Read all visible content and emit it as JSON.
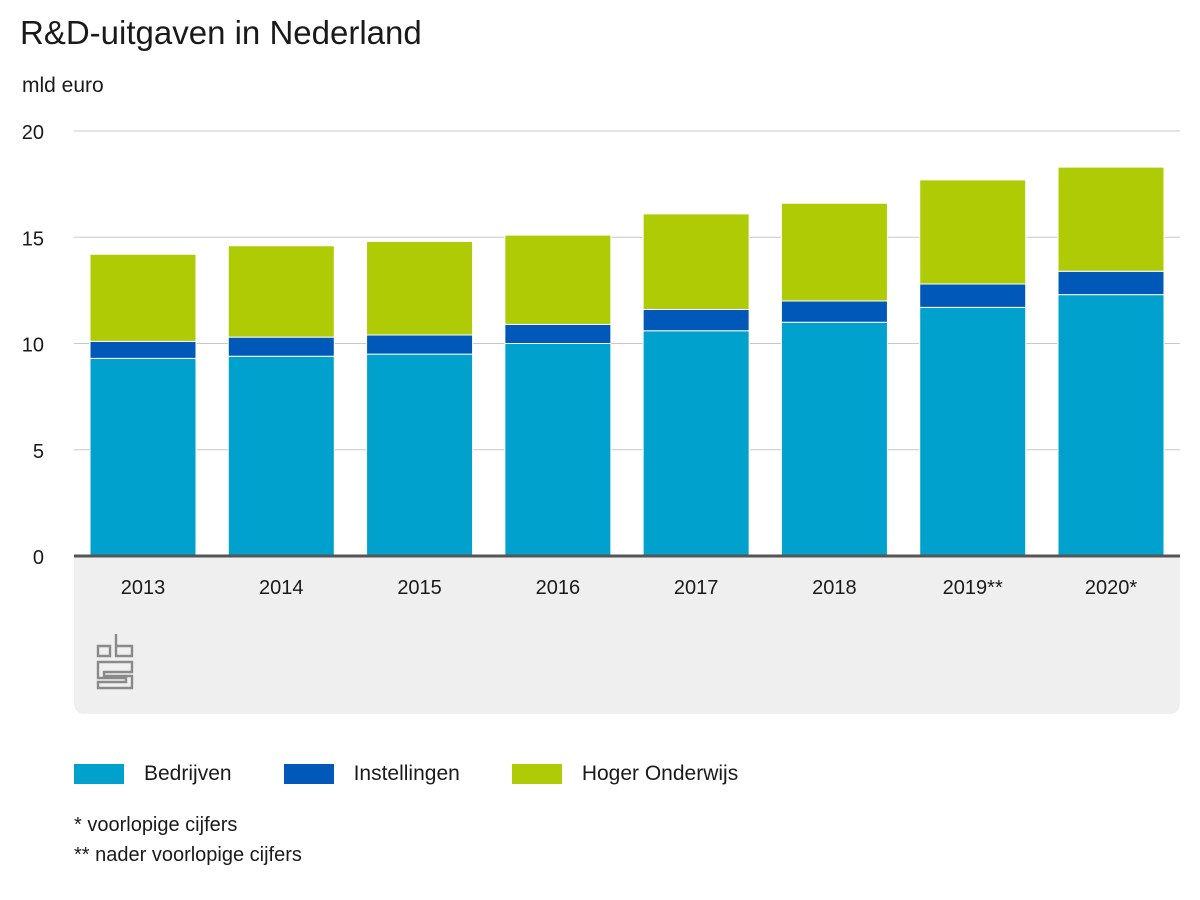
{
  "chart_data": {
    "type": "bar",
    "stacked": true,
    "title": "R&D-uitgaven in Nederland",
    "ylabel": "mld euro",
    "xlabel": "",
    "ylim": [
      0,
      20
    ],
    "yticks": [
      0,
      5,
      10,
      15,
      20
    ],
    "grid": true,
    "legend_position": "bottom",
    "categories": [
      "2013",
      "2014",
      "2015",
      "2016",
      "2017",
      "2018",
      "2019**",
      "2020*"
    ],
    "series": [
      {
        "name": "Bedrijven",
        "color": "#00a1cd",
        "values": [
          9.3,
          9.4,
          9.5,
          10.0,
          10.6,
          11.0,
          11.7,
          12.3
        ]
      },
      {
        "name": "Instellingen",
        "color": "#0058b8",
        "values": [
          0.8,
          0.9,
          0.9,
          0.9,
          1.0,
          1.0,
          1.1,
          1.1
        ]
      },
      {
        "name": "Hoger Onderwijs",
        "color": "#afcb05",
        "values": [
          4.1,
          4.3,
          4.4,
          4.2,
          4.5,
          4.6,
          4.9,
          4.9
        ]
      }
    ],
    "footnotes": [
      "* voorlopige cijfers",
      "** nader voorlopige cijfers"
    ]
  }
}
